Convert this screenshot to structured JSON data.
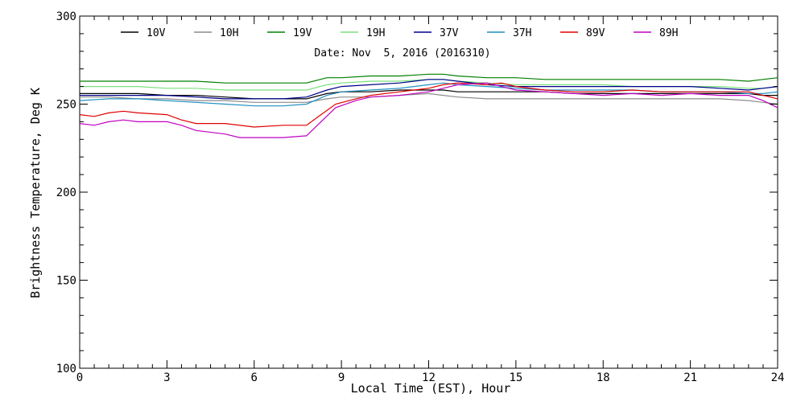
{
  "chart_data": {
    "type": "line",
    "annotation": "Date: Nov  5, 2016 (2016310)",
    "xlabel": "Local Time (EST), Hour",
    "ylabel": "Brightness Temperature, Deg K",
    "xlim": [
      0,
      24
    ],
    "ylim": [
      100,
      300
    ],
    "xticks": [
      0,
      3,
      6,
      9,
      12,
      15,
      18,
      21,
      24
    ],
    "yticks": [
      100,
      150,
      200,
      250,
      300
    ],
    "legend_placement": "top",
    "grid": false,
    "series": [
      {
        "name": "10V",
        "color": "#000000",
        "x": [
          0,
          1,
          2,
          3,
          4,
          5,
          6,
          7,
          7.8,
          8.5,
          9,
          10,
          11,
          12,
          12.5,
          13,
          14,
          15,
          16,
          17,
          18,
          19,
          20,
          21,
          22,
          23,
          23.5,
          24
        ],
        "y": [
          256,
          256,
          256,
          255,
          255,
          254,
          253,
          253,
          253,
          256,
          257,
          257,
          258,
          258,
          258,
          257,
          257,
          257,
          257,
          256,
          256,
          256,
          256,
          256,
          256,
          256,
          255,
          255
        ]
      },
      {
        "name": "10H",
        "color": "#8c8c8c",
        "x": [
          0,
          1,
          2,
          3,
          4,
          5,
          6,
          7,
          7.8,
          8.5,
          9,
          10,
          11,
          12,
          12.5,
          13,
          14,
          15,
          16,
          17,
          18,
          19,
          20,
          21,
          22,
          23,
          23.5,
          24
        ],
        "y": [
          254,
          254,
          253,
          253,
          252,
          252,
          251,
          251,
          251,
          253,
          254,
          254,
          255,
          256,
          255,
          254,
          253,
          253,
          253,
          253,
          253,
          253,
          253,
          253,
          253,
          252,
          251,
          250
        ]
      },
      {
        "name": "19V",
        "color": "#008000",
        "x": [
          0,
          1,
          2,
          3,
          4,
          5,
          6,
          7,
          7.8,
          8.5,
          9,
          10,
          11,
          12,
          12.5,
          13,
          14,
          15,
          16,
          17,
          18,
          19,
          20,
          21,
          22,
          23,
          23.5,
          24
        ],
        "y": [
          263,
          263,
          263,
          263,
          263,
          262,
          262,
          262,
          262,
          265,
          265,
          266,
          266,
          267,
          267,
          266,
          265,
          265,
          264,
          264,
          264,
          264,
          264,
          264,
          264,
          263,
          264,
          265
        ]
      },
      {
        "name": "19H",
        "color": "#7be07b",
        "x": [
          0,
          1,
          2,
          3,
          4,
          5,
          6,
          7,
          7.8,
          8.5,
          9,
          10,
          11,
          12,
          12.5,
          13,
          14,
          15,
          16,
          17,
          18,
          19,
          20,
          21,
          22,
          23,
          23.5,
          24
        ],
        "y": [
          260,
          260,
          260,
          259,
          259,
          258,
          258,
          258,
          258,
          261,
          262,
          263,
          263,
          264,
          264,
          263,
          262,
          261,
          261,
          261,
          261,
          260,
          260,
          260,
          260,
          259,
          259,
          260
        ]
      },
      {
        "name": "37V",
        "color": "#00008b",
        "x": [
          0,
          1,
          2,
          3,
          4,
          5,
          6,
          7,
          7.8,
          8.5,
          9,
          10,
          11,
          12,
          12.5,
          13,
          14,
          15,
          16,
          17,
          18,
          19,
          20,
          21,
          22,
          23,
          23.5,
          24
        ],
        "y": [
          255,
          255,
          255,
          255,
          254,
          253,
          253,
          253,
          254,
          258,
          260,
          261,
          262,
          264,
          264,
          263,
          261,
          260,
          260,
          260,
          260,
          260,
          260,
          260,
          259,
          258,
          259,
          260
        ]
      },
      {
        "name": "37H",
        "color": "#1f8fc2",
        "x": [
          0,
          1,
          2,
          3,
          4,
          5,
          6,
          7,
          7.8,
          8.5,
          9,
          10,
          11,
          12,
          12.5,
          13,
          14,
          15,
          16,
          17,
          18,
          19,
          20,
          21,
          22,
          23,
          23.5,
          24
        ],
        "y": [
          252,
          253,
          253,
          252,
          251,
          250,
          249,
          249,
          250,
          255,
          257,
          258,
          259,
          261,
          262,
          261,
          260,
          259,
          258,
          258,
          258,
          258,
          257,
          257,
          257,
          256,
          256,
          257
        ]
      },
      {
        "name": "89V",
        "color": "#e00000",
        "x": [
          0,
          0.5,
          1,
          1.5,
          2,
          3,
          3.5,
          4,
          5,
          6,
          7,
          7.8,
          8.3,
          8.8,
          9.5,
          10,
          11,
          12,
          12.5,
          13,
          14,
          14.5,
          15,
          16,
          17,
          18,
          19,
          20,
          21,
          22,
          23,
          23.5,
          24
        ],
        "y": [
          244,
          243,
          245,
          246,
          245,
          244,
          241,
          239,
          239,
          237,
          238,
          238,
          244,
          250,
          253,
          255,
          257,
          259,
          261,
          262,
          261,
          262,
          260,
          258,
          257,
          257,
          258,
          257,
          257,
          257,
          257,
          255,
          253
        ]
      },
      {
        "name": "89H",
        "color": "#c000c0",
        "x": [
          0,
          0.5,
          1,
          1.5,
          2,
          3,
          3.5,
          4,
          5,
          5.5,
          6,
          7,
          7.8,
          8.3,
          8.8,
          9.5,
          10,
          11,
          12,
          12.5,
          13,
          14,
          15,
          16,
          17,
          18,
          19,
          20,
          21,
          22,
          23,
          23.5,
          24
        ],
        "y": [
          239,
          238,
          240,
          241,
          240,
          240,
          238,
          235,
          233,
          231,
          231,
          231,
          232,
          240,
          248,
          252,
          254,
          255,
          257,
          259,
          261,
          262,
          258,
          257,
          256,
          255,
          256,
          255,
          256,
          255,
          255,
          252,
          248
        ]
      }
    ]
  }
}
